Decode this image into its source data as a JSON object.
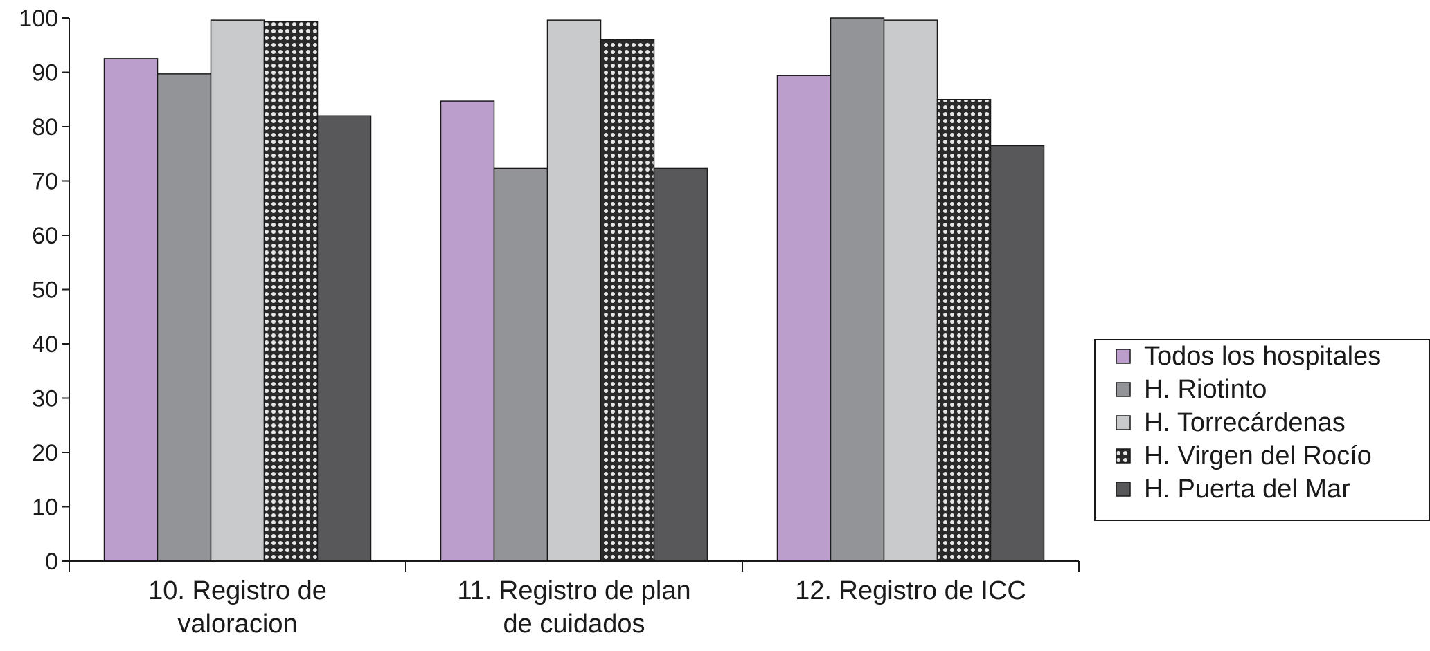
{
  "chart_data": {
    "type": "bar",
    "categories": [
      [
        "10. Registro de",
        "valoracion"
      ],
      [
        "11. Registro de plan",
        "de cuidados"
      ],
      [
        "12. Registro de ICC"
      ]
    ],
    "series": [
      {
        "name": "Todos los hospitales",
        "values": [
          92.5,
          84.7,
          89.4
        ],
        "color": "#bb9ecb",
        "pattern": "solid"
      },
      {
        "name": "H. Riotinto",
        "values": [
          89.7,
          72.3,
          100
        ],
        "color": "#939498",
        "pattern": "solid"
      },
      {
        "name": "H. Torrecárdenas",
        "values": [
          99.6,
          99.6,
          99.6
        ],
        "color": "#c9cacc",
        "pattern": "solid"
      },
      {
        "name": "H. Virgen del Rocío",
        "values": [
          99.3,
          96.0,
          85.0
        ],
        "color": "#333333",
        "pattern": "checker"
      },
      {
        "name": "H. Puerta del Mar",
        "values": [
          82.0,
          72.3,
          76.5
        ],
        "color": "#58585a",
        "pattern": "solid"
      }
    ],
    "yticks": [
      0,
      10,
      20,
      30,
      40,
      50,
      60,
      70,
      80,
      90,
      100
    ],
    "ylim": [
      0,
      100
    ],
    "grid": false,
    "legend_position": "right"
  }
}
